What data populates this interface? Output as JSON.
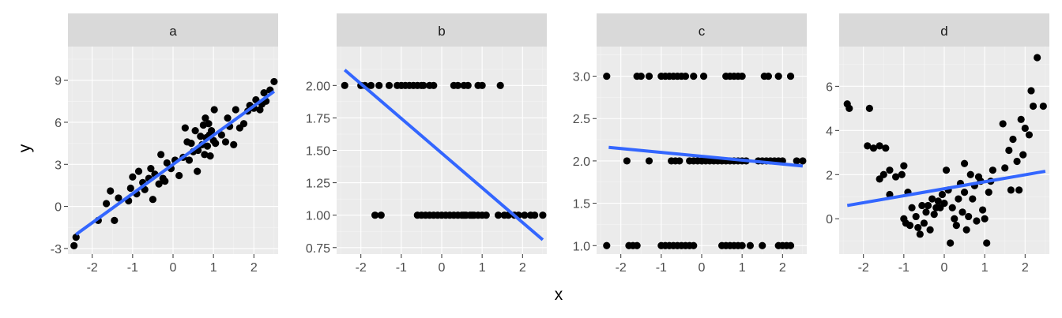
{
  "chart_data": {
    "type": "scatter",
    "xlabel": "x",
    "ylabel": "y",
    "colors": {
      "points": "#000000",
      "fit_line": "#3366ff",
      "panel": "#ebebeb",
      "strip": "#d9d9d9"
    },
    "grid": true,
    "panels": [
      {
        "label": "a",
        "xlim": [
          -2.6,
          2.6
        ],
        "ylim": [
          -3.4,
          11.4
        ],
        "xticks": [
          -2,
          -1,
          0,
          1,
          2
        ],
        "xtick_labels": [
          "-2",
          "-1",
          "0",
          "1",
          "2"
        ],
        "yticks": [
          -3,
          0,
          3,
          6,
          9
        ],
        "ytick_labels": [
          "-3",
          "0",
          "3",
          "6",
          "9"
        ],
        "fit_line": {
          "x": [
            -2.4,
            2.5
          ],
          "y": [
            -2.0,
            8.2
          ]
        },
        "points": [
          [
            -2.45,
            -2.8
          ],
          [
            -2.4,
            -2.2
          ],
          [
            -1.85,
            -1.0
          ],
          [
            -1.65,
            0.2
          ],
          [
            -1.55,
            1.1
          ],
          [
            -1.45,
            -1.0
          ],
          [
            -1.35,
            0.6
          ],
          [
            -1.1,
            0.4
          ],
          [
            -1.05,
            1.3
          ],
          [
            -1.0,
            2.1
          ],
          [
            -0.9,
            0.9
          ],
          [
            -0.85,
            2.5
          ],
          [
            -0.75,
            1.7
          ],
          [
            -0.7,
            1.2
          ],
          [
            -0.6,
            2.0
          ],
          [
            -0.55,
            2.7
          ],
          [
            -0.5,
            0.5
          ],
          [
            -0.45,
            2.3
          ],
          [
            -0.35,
            1.6
          ],
          [
            -0.3,
            3.7
          ],
          [
            -0.25,
            2.0
          ],
          [
            -0.2,
            1.8
          ],
          [
            -0.15,
            3.1
          ],
          [
            -0.05,
            2.7
          ],
          [
            0.05,
            3.3
          ],
          [
            0.15,
            2.2
          ],
          [
            0.25,
            3.5
          ],
          [
            0.3,
            5.6
          ],
          [
            0.35,
            4.6
          ],
          [
            0.4,
            3.3
          ],
          [
            0.45,
            4.5
          ],
          [
            0.5,
            3.9
          ],
          [
            0.55,
            5.4
          ],
          [
            0.6,
            2.5
          ],
          [
            0.62,
            4.0
          ],
          [
            0.68,
            5.0
          ],
          [
            0.72,
            4.4
          ],
          [
            0.75,
            5.8
          ],
          [
            0.78,
            3.7
          ],
          [
            0.8,
            6.3
          ],
          [
            0.82,
            4.9
          ],
          [
            0.85,
            4.3
          ],
          [
            0.88,
            5.9
          ],
          [
            0.9,
            5.1
          ],
          [
            0.92,
            3.6
          ],
          [
            0.95,
            5.4
          ],
          [
            1.0,
            4.7
          ],
          [
            1.02,
            6.9
          ],
          [
            1.05,
            4.5
          ],
          [
            1.2,
            5.1
          ],
          [
            1.3,
            4.6
          ],
          [
            1.35,
            6.3
          ],
          [
            1.4,
            5.7
          ],
          [
            1.5,
            4.4
          ],
          [
            1.55,
            6.9
          ],
          [
            1.65,
            5.6
          ],
          [
            1.75,
            5.9
          ],
          [
            1.85,
            6.8
          ],
          [
            1.9,
            7.2
          ],
          [
            2.0,
            7.0
          ],
          [
            2.05,
            7.6
          ],
          [
            2.15,
            6.9
          ],
          [
            2.2,
            7.3
          ],
          [
            2.25,
            8.1
          ],
          [
            2.3,
            7.5
          ],
          [
            2.4,
            8.3
          ],
          [
            2.5,
            8.9
          ]
        ]
      },
      {
        "label": "b",
        "xlim": [
          -2.6,
          2.6
        ],
        "ylim": [
          0.7,
          2.3
        ],
        "xticks": [
          -2,
          -1,
          0,
          1,
          2
        ],
        "xtick_labels": [
          "-2",
          "-1",
          "0",
          "1",
          "2"
        ],
        "yticks": [
          0.75,
          1.0,
          1.25,
          1.5,
          1.75,
          2.0
        ],
        "ytick_labels": [
          "0.75",
          "1.00",
          "1.25",
          "1.50",
          "1.75",
          "2.00"
        ],
        "fit_line": {
          "x": [
            -2.4,
            2.5
          ],
          "y": [
            2.12,
            0.81
          ]
        },
        "points": [
          [
            -2.4,
            2
          ],
          [
            -2.0,
            2
          ],
          [
            -1.9,
            2
          ],
          [
            -1.75,
            2
          ],
          [
            -1.55,
            2
          ],
          [
            -1.3,
            2
          ],
          [
            -1.1,
            2
          ],
          [
            -1.0,
            2
          ],
          [
            -0.9,
            2
          ],
          [
            -0.8,
            2
          ],
          [
            -0.7,
            2
          ],
          [
            -0.6,
            2
          ],
          [
            -0.5,
            2
          ],
          [
            -0.45,
            2
          ],
          [
            -0.3,
            2
          ],
          [
            -0.2,
            2
          ],
          [
            0.3,
            2
          ],
          [
            0.4,
            2
          ],
          [
            0.55,
            2
          ],
          [
            0.65,
            2
          ],
          [
            0.9,
            2
          ],
          [
            1.0,
            2
          ],
          [
            1.45,
            2
          ],
          [
            -1.65,
            1
          ],
          [
            -1.5,
            1
          ],
          [
            -0.6,
            1
          ],
          [
            -0.5,
            1
          ],
          [
            -0.4,
            1
          ],
          [
            -0.3,
            1
          ],
          [
            -0.2,
            1
          ],
          [
            -0.1,
            1
          ],
          [
            0.0,
            1
          ],
          [
            0.1,
            1
          ],
          [
            0.2,
            1
          ],
          [
            0.3,
            1
          ],
          [
            0.4,
            1
          ],
          [
            0.5,
            1
          ],
          [
            0.55,
            1
          ],
          [
            0.6,
            1
          ],
          [
            0.7,
            1
          ],
          [
            0.75,
            1
          ],
          [
            0.8,
            1
          ],
          [
            0.9,
            1
          ],
          [
            1.0,
            1
          ],
          [
            1.1,
            1
          ],
          [
            1.4,
            1
          ],
          [
            1.55,
            1
          ],
          [
            1.65,
            1
          ],
          [
            1.8,
            1
          ],
          [
            1.9,
            1
          ],
          [
            2.05,
            1
          ],
          [
            2.2,
            1
          ],
          [
            2.3,
            1
          ],
          [
            2.5,
            1
          ]
        ]
      },
      {
        "label": "c",
        "xlim": [
          -2.6,
          2.6
        ],
        "ylim": [
          0.9,
          3.35
        ],
        "xticks": [
          -2,
          -1,
          0,
          1,
          2
        ],
        "xtick_labels": [
          "-2",
          "-1",
          "0",
          "1",
          "2"
        ],
        "yticks": [
          1.0,
          1.5,
          2.0,
          2.5,
          3.0
        ],
        "ytick_labels": [
          "1.0",
          "1.5",
          "2.0",
          "2.5",
          "3.0"
        ],
        "fit_line": {
          "x": [
            -2.3,
            2.5
          ],
          "y": [
            2.16,
            1.94
          ]
        },
        "points": [
          [
            -2.35,
            3
          ],
          [
            -1.6,
            3
          ],
          [
            -1.5,
            3
          ],
          [
            -1.3,
            3
          ],
          [
            -1.0,
            3
          ],
          [
            -0.9,
            3
          ],
          [
            -0.8,
            3
          ],
          [
            -0.7,
            3
          ],
          [
            -0.6,
            3
          ],
          [
            -0.5,
            3
          ],
          [
            -0.4,
            3
          ],
          [
            -0.2,
            3
          ],
          [
            0.05,
            3
          ],
          [
            0.6,
            3
          ],
          [
            0.7,
            3
          ],
          [
            0.8,
            3
          ],
          [
            0.9,
            3
          ],
          [
            1.0,
            3
          ],
          [
            1.55,
            3
          ],
          [
            1.65,
            3
          ],
          [
            1.9,
            3
          ],
          [
            2.2,
            3
          ],
          [
            -1.85,
            2
          ],
          [
            -1.3,
            2
          ],
          [
            -0.75,
            2
          ],
          [
            -0.65,
            2
          ],
          [
            -0.55,
            2
          ],
          [
            -0.3,
            2
          ],
          [
            -0.2,
            2
          ],
          [
            -0.1,
            2
          ],
          [
            0.0,
            2
          ],
          [
            0.1,
            2
          ],
          [
            0.2,
            2
          ],
          [
            0.3,
            2
          ],
          [
            0.4,
            2
          ],
          [
            0.5,
            2
          ],
          [
            0.6,
            2
          ],
          [
            0.7,
            2
          ],
          [
            0.8,
            2
          ],
          [
            0.9,
            2
          ],
          [
            1.0,
            2
          ],
          [
            1.1,
            2
          ],
          [
            1.4,
            2
          ],
          [
            1.5,
            2
          ],
          [
            1.6,
            2
          ],
          [
            1.7,
            2
          ],
          [
            1.8,
            2
          ],
          [
            1.9,
            2
          ],
          [
            2.0,
            2
          ],
          [
            2.35,
            2
          ],
          [
            2.5,
            2
          ],
          [
            -2.35,
            1
          ],
          [
            -1.8,
            1
          ],
          [
            -1.7,
            1
          ],
          [
            -1.6,
            1
          ],
          [
            -1.0,
            1
          ],
          [
            -0.9,
            1
          ],
          [
            -0.8,
            1
          ],
          [
            -0.7,
            1
          ],
          [
            -0.6,
            1
          ],
          [
            -0.5,
            1
          ],
          [
            -0.4,
            1
          ],
          [
            -0.3,
            1
          ],
          [
            -0.2,
            1
          ],
          [
            0.5,
            1
          ],
          [
            0.6,
            1
          ],
          [
            0.7,
            1
          ],
          [
            0.8,
            1
          ],
          [
            0.9,
            1
          ],
          [
            1.0,
            1
          ],
          [
            1.2,
            1
          ],
          [
            1.5,
            1
          ],
          [
            1.9,
            1
          ],
          [
            2.0,
            1
          ],
          [
            2.1,
            1
          ],
          [
            2.2,
            1
          ]
        ]
      },
      {
        "label": "d",
        "xlim": [
          -2.6,
          2.6
        ],
        "ylim": [
          -1.6,
          7.8
        ],
        "xticks": [
          -2,
          -1,
          0,
          1,
          2
        ],
        "xtick_labels": [
          "-2",
          "-1",
          "0",
          "1",
          "2"
        ],
        "yticks": [
          0,
          2,
          4,
          6
        ],
        "ytick_labels": [
          "0",
          "2",
          "4",
          "6"
        ],
        "fit_line": {
          "x": [
            -2.4,
            2.5
          ],
          "y": [
            0.6,
            2.15
          ]
        },
        "points": [
          [
            -2.4,
            5.2
          ],
          [
            -2.35,
            5.0
          ],
          [
            -1.85,
            5.0
          ],
          [
            -1.9,
            3.3
          ],
          [
            -1.75,
            3.2
          ],
          [
            -1.6,
            3.3
          ],
          [
            -1.45,
            3.2
          ],
          [
            -1.6,
            1.8
          ],
          [
            -1.5,
            2.0
          ],
          [
            -1.35,
            1.1
          ],
          [
            -1.35,
            2.2
          ],
          [
            -1.2,
            1.9
          ],
          [
            -1.05,
            2.0
          ],
          [
            -1.0,
            2.4
          ],
          [
            -0.9,
            1.2
          ],
          [
            -1.0,
            0.0
          ],
          [
            -0.95,
            -0.2
          ],
          [
            -0.85,
            -0.3
          ],
          [
            -0.8,
            0.5
          ],
          [
            -0.7,
            0.1
          ],
          [
            -0.65,
            -0.4
          ],
          [
            -0.6,
            -0.7
          ],
          [
            -0.55,
            0.6
          ],
          [
            -0.5,
            -0.2
          ],
          [
            -0.45,
            0.3
          ],
          [
            -0.4,
            0.6
          ],
          [
            -0.35,
            -0.5
          ],
          [
            -0.3,
            0.9
          ],
          [
            -0.25,
            0.2
          ],
          [
            -0.2,
            0.5
          ],
          [
            -0.15,
            0.8
          ],
          [
            -0.1,
            0.5
          ],
          [
            -0.05,
            1.1
          ],
          [
            0.0,
            0.7
          ],
          [
            0.05,
            2.2
          ],
          [
            0.1,
            1.3
          ],
          [
            0.15,
            -1.1
          ],
          [
            0.2,
            0.5
          ],
          [
            0.25,
            0.0
          ],
          [
            0.3,
            -0.3
          ],
          [
            0.35,
            0.9
          ],
          [
            0.4,
            1.6
          ],
          [
            0.45,
            0.3
          ],
          [
            0.5,
            2.5
          ],
          [
            0.5,
            1.2
          ],
          [
            0.55,
            -0.5
          ],
          [
            0.6,
            0.1
          ],
          [
            0.65,
            2.0
          ],
          [
            0.7,
            0.9
          ],
          [
            0.75,
            1.5
          ],
          [
            0.8,
            -0.1
          ],
          [
            0.85,
            1.9
          ],
          [
            0.9,
            1.7
          ],
          [
            0.95,
            0.4
          ],
          [
            1.0,
            0.0
          ],
          [
            1.05,
            -1.1
          ],
          [
            1.1,
            1.2
          ],
          [
            1.15,
            1.7
          ],
          [
            1.2,
            2.2
          ],
          [
            1.45,
            4.3
          ],
          [
            1.5,
            2.3
          ],
          [
            1.6,
            3.1
          ],
          [
            1.65,
            1.3
          ],
          [
            1.7,
            3.6
          ],
          [
            1.8,
            2.6
          ],
          [
            1.85,
            1.3
          ],
          [
            1.9,
            4.5
          ],
          [
            1.95,
            2.9
          ],
          [
            2.0,
            4.1
          ],
          [
            2.1,
            3.8
          ],
          [
            2.15,
            5.8
          ],
          [
            2.2,
            5.1
          ],
          [
            2.3,
            7.3
          ],
          [
            2.45,
            5.1
          ]
        ]
      }
    ]
  }
}
